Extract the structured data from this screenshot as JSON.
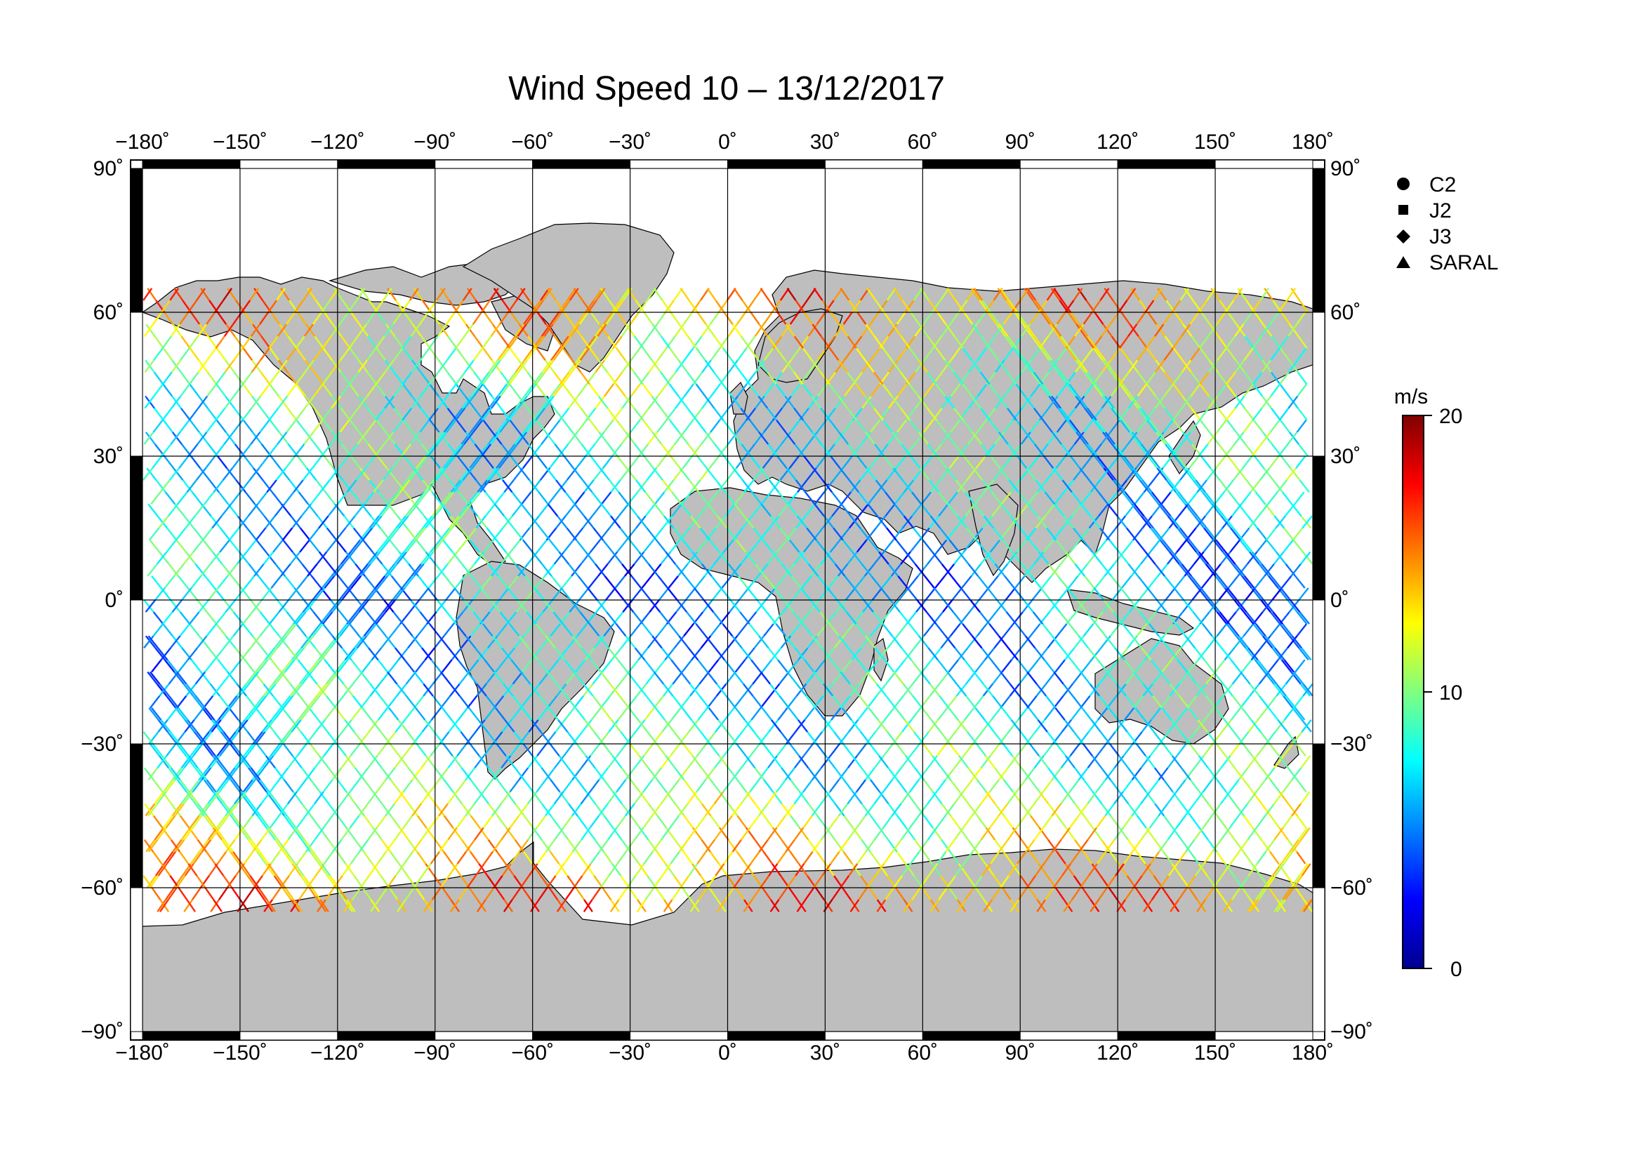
{
  "title": "Wind Speed 10 – 13/12/2017",
  "map": {
    "lon_range": [
      -180,
      180
    ],
    "lat_range": [
      -90,
      90
    ],
    "projection": "equirectangular",
    "land_color": "#bebebe",
    "ocean_color": "#ffffff",
    "grid": true,
    "lon_ticks": [
      "−180˚",
      "−150˚",
      "−120˚",
      "−90˚",
      "−60˚",
      "−30˚",
      "0˚",
      "30˚",
      "60˚",
      "90˚",
      "120˚",
      "150˚",
      "180˚"
    ],
    "lat_ticks_left": [
      "90˚",
      "60˚",
      "30˚",
      "0˚",
      "−30˚",
      "−60˚",
      "−90˚"
    ],
    "lat_ticks_right": [
      "90˚",
      "60˚",
      "30˚",
      "0˚",
      "−30˚",
      "−60˚",
      "−90˚"
    ]
  },
  "legend": {
    "items": [
      {
        "label": "C2",
        "symbol": "circle"
      },
      {
        "label": "J2",
        "symbol": "square"
      },
      {
        "label": "J3",
        "symbol": "diamond"
      },
      {
        "label": "SARAL",
        "symbol": "triangle"
      }
    ]
  },
  "colorbar": {
    "unit": "m/s",
    "min": 0,
    "max": 20,
    "tick_labels": [
      "20",
      "10",
      "0"
    ],
    "colormap": "jet",
    "colors": [
      "#00008f",
      "#0000ff",
      "#00ffff",
      "#ffff00",
      "#ff0000",
      "#800000"
    ]
  },
  "tracks": {
    "description_note": "",
    "satellites": [
      "C2",
      "J2",
      "J3",
      "SARAL"
    ],
    "lat_coverage": [
      -65,
      65
    ]
  }
}
